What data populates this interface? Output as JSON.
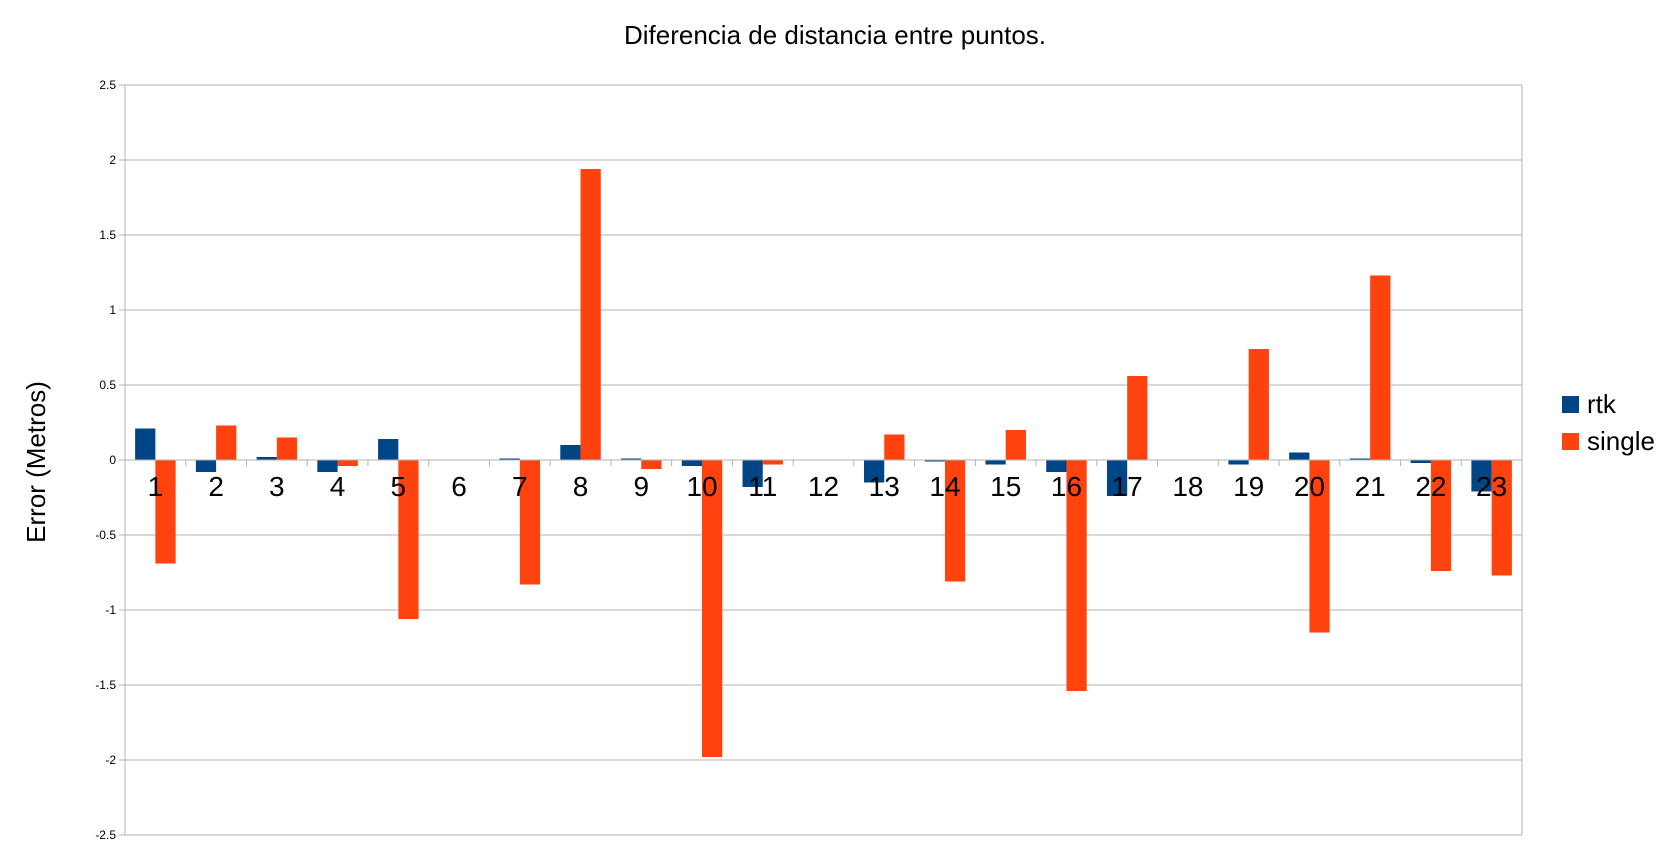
{
  "chart_data": {
    "type": "bar",
    "title": "Diferencia de distancia entre puntos.",
    "xlabel": "",
    "ylabel": "Error (Metros)",
    "ylim": [
      -2.5,
      2.5
    ],
    "yticks": [
      "2.5",
      "2",
      "1.5",
      "1",
      "0.5",
      "0",
      "-0.5",
      "-1",
      "-1.5",
      "-2",
      "-2.5"
    ],
    "ytick_values": [
      2.5,
      2,
      1.5,
      1,
      0.5,
      0,
      -0.5,
      -1,
      -1.5,
      -2,
      -2.5
    ],
    "grid": true,
    "legend_position": "right",
    "categories": [
      "1",
      "2",
      "3",
      "4",
      "5",
      "6",
      "7",
      "8",
      "9",
      "10",
      "11",
      "12",
      "13",
      "14",
      "15",
      "16",
      "17",
      "18",
      "19",
      "20",
      "21",
      "22",
      "23"
    ],
    "series": [
      {
        "name": "rtk",
        "color": "#004586",
        "values": [
          0.21,
          -0.08,
          0.02,
          -0.08,
          0.14,
          0.0,
          0.01,
          0.1,
          0.01,
          -0.04,
          -0.18,
          0.0,
          -0.15,
          -0.01,
          -0.03,
          -0.08,
          -0.24,
          0.0,
          -0.03,
          0.05,
          0.01,
          -0.02,
          -0.21
        ]
      },
      {
        "name": "single",
        "color": "#ff420e",
        "values": [
          -0.69,
          0.23,
          0.15,
          -0.04,
          -1.06,
          0.0,
          -0.83,
          1.94,
          -0.06,
          -1.98,
          -0.03,
          0.0,
          0.17,
          -0.81,
          0.2,
          -1.54,
          0.56,
          0.0,
          0.74,
          -1.15,
          1.23,
          -0.74,
          -0.77
        ]
      }
    ]
  }
}
